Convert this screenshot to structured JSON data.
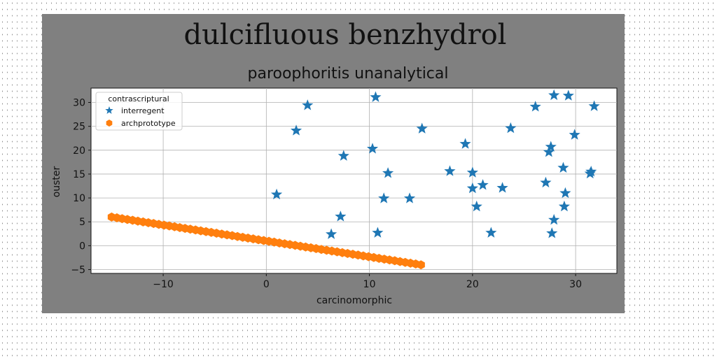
{
  "chart_data": {
    "type": "scatter",
    "title": "dulcifluous benzhydrol",
    "subtitle": "paroophoritis unanalytical",
    "xlabel": "carcinomorphic",
    "ylabel": "ouster",
    "xlim": [
      -17,
      34
    ],
    "ylim": [
      -5.8,
      33
    ],
    "xticks": [
      -10,
      0,
      10,
      20,
      30
    ],
    "yticks": [
      -5,
      0,
      5,
      10,
      15,
      20,
      25,
      30
    ],
    "grid": true,
    "legend": {
      "title": "contrascriptural",
      "placement": "top-left"
    },
    "series": [
      {
        "name": "interregent",
        "marker": "star",
        "color": "#1f77b4",
        "points": [
          [
            1.0,
            10.7
          ],
          [
            2.9,
            24.1
          ],
          [
            4.0,
            29.4
          ],
          [
            6.3,
            2.4
          ],
          [
            7.2,
            6.1
          ],
          [
            7.5,
            18.8
          ],
          [
            10.3,
            20.3
          ],
          [
            10.6,
            31.1
          ],
          [
            10.8,
            2.7
          ],
          [
            11.4,
            9.9
          ],
          [
            11.8,
            15.2
          ],
          [
            13.9,
            9.9
          ],
          [
            15.1,
            24.5
          ],
          [
            17.8,
            15.6
          ],
          [
            19.3,
            21.3
          ],
          [
            20.0,
            15.3
          ],
          [
            20.0,
            12.0
          ],
          [
            20.4,
            8.2
          ],
          [
            21.0,
            12.7
          ],
          [
            21.8,
            2.7
          ],
          [
            22.9,
            12.1
          ],
          [
            23.7,
            24.6
          ],
          [
            26.1,
            29.1
          ],
          [
            27.1,
            13.2
          ],
          [
            27.4,
            19.6
          ],
          [
            27.6,
            20.7
          ],
          [
            27.7,
            2.6
          ],
          [
            27.9,
            31.5
          ],
          [
            27.9,
            5.4
          ],
          [
            28.8,
            16.3
          ],
          [
            28.9,
            8.2
          ],
          [
            29.0,
            11.0
          ],
          [
            29.3,
            31.4
          ],
          [
            29.9,
            23.2
          ],
          [
            31.4,
            15.1
          ],
          [
            31.5,
            15.5
          ],
          [
            31.8,
            29.2
          ]
        ]
      },
      {
        "name": "archprototype",
        "marker": "hexagon",
        "color": "#ff7f0e",
        "line": {
          "x_start": -15,
          "x_end": 15,
          "y_start": 6,
          "y_end": -4,
          "count": 60
        }
      }
    ]
  }
}
